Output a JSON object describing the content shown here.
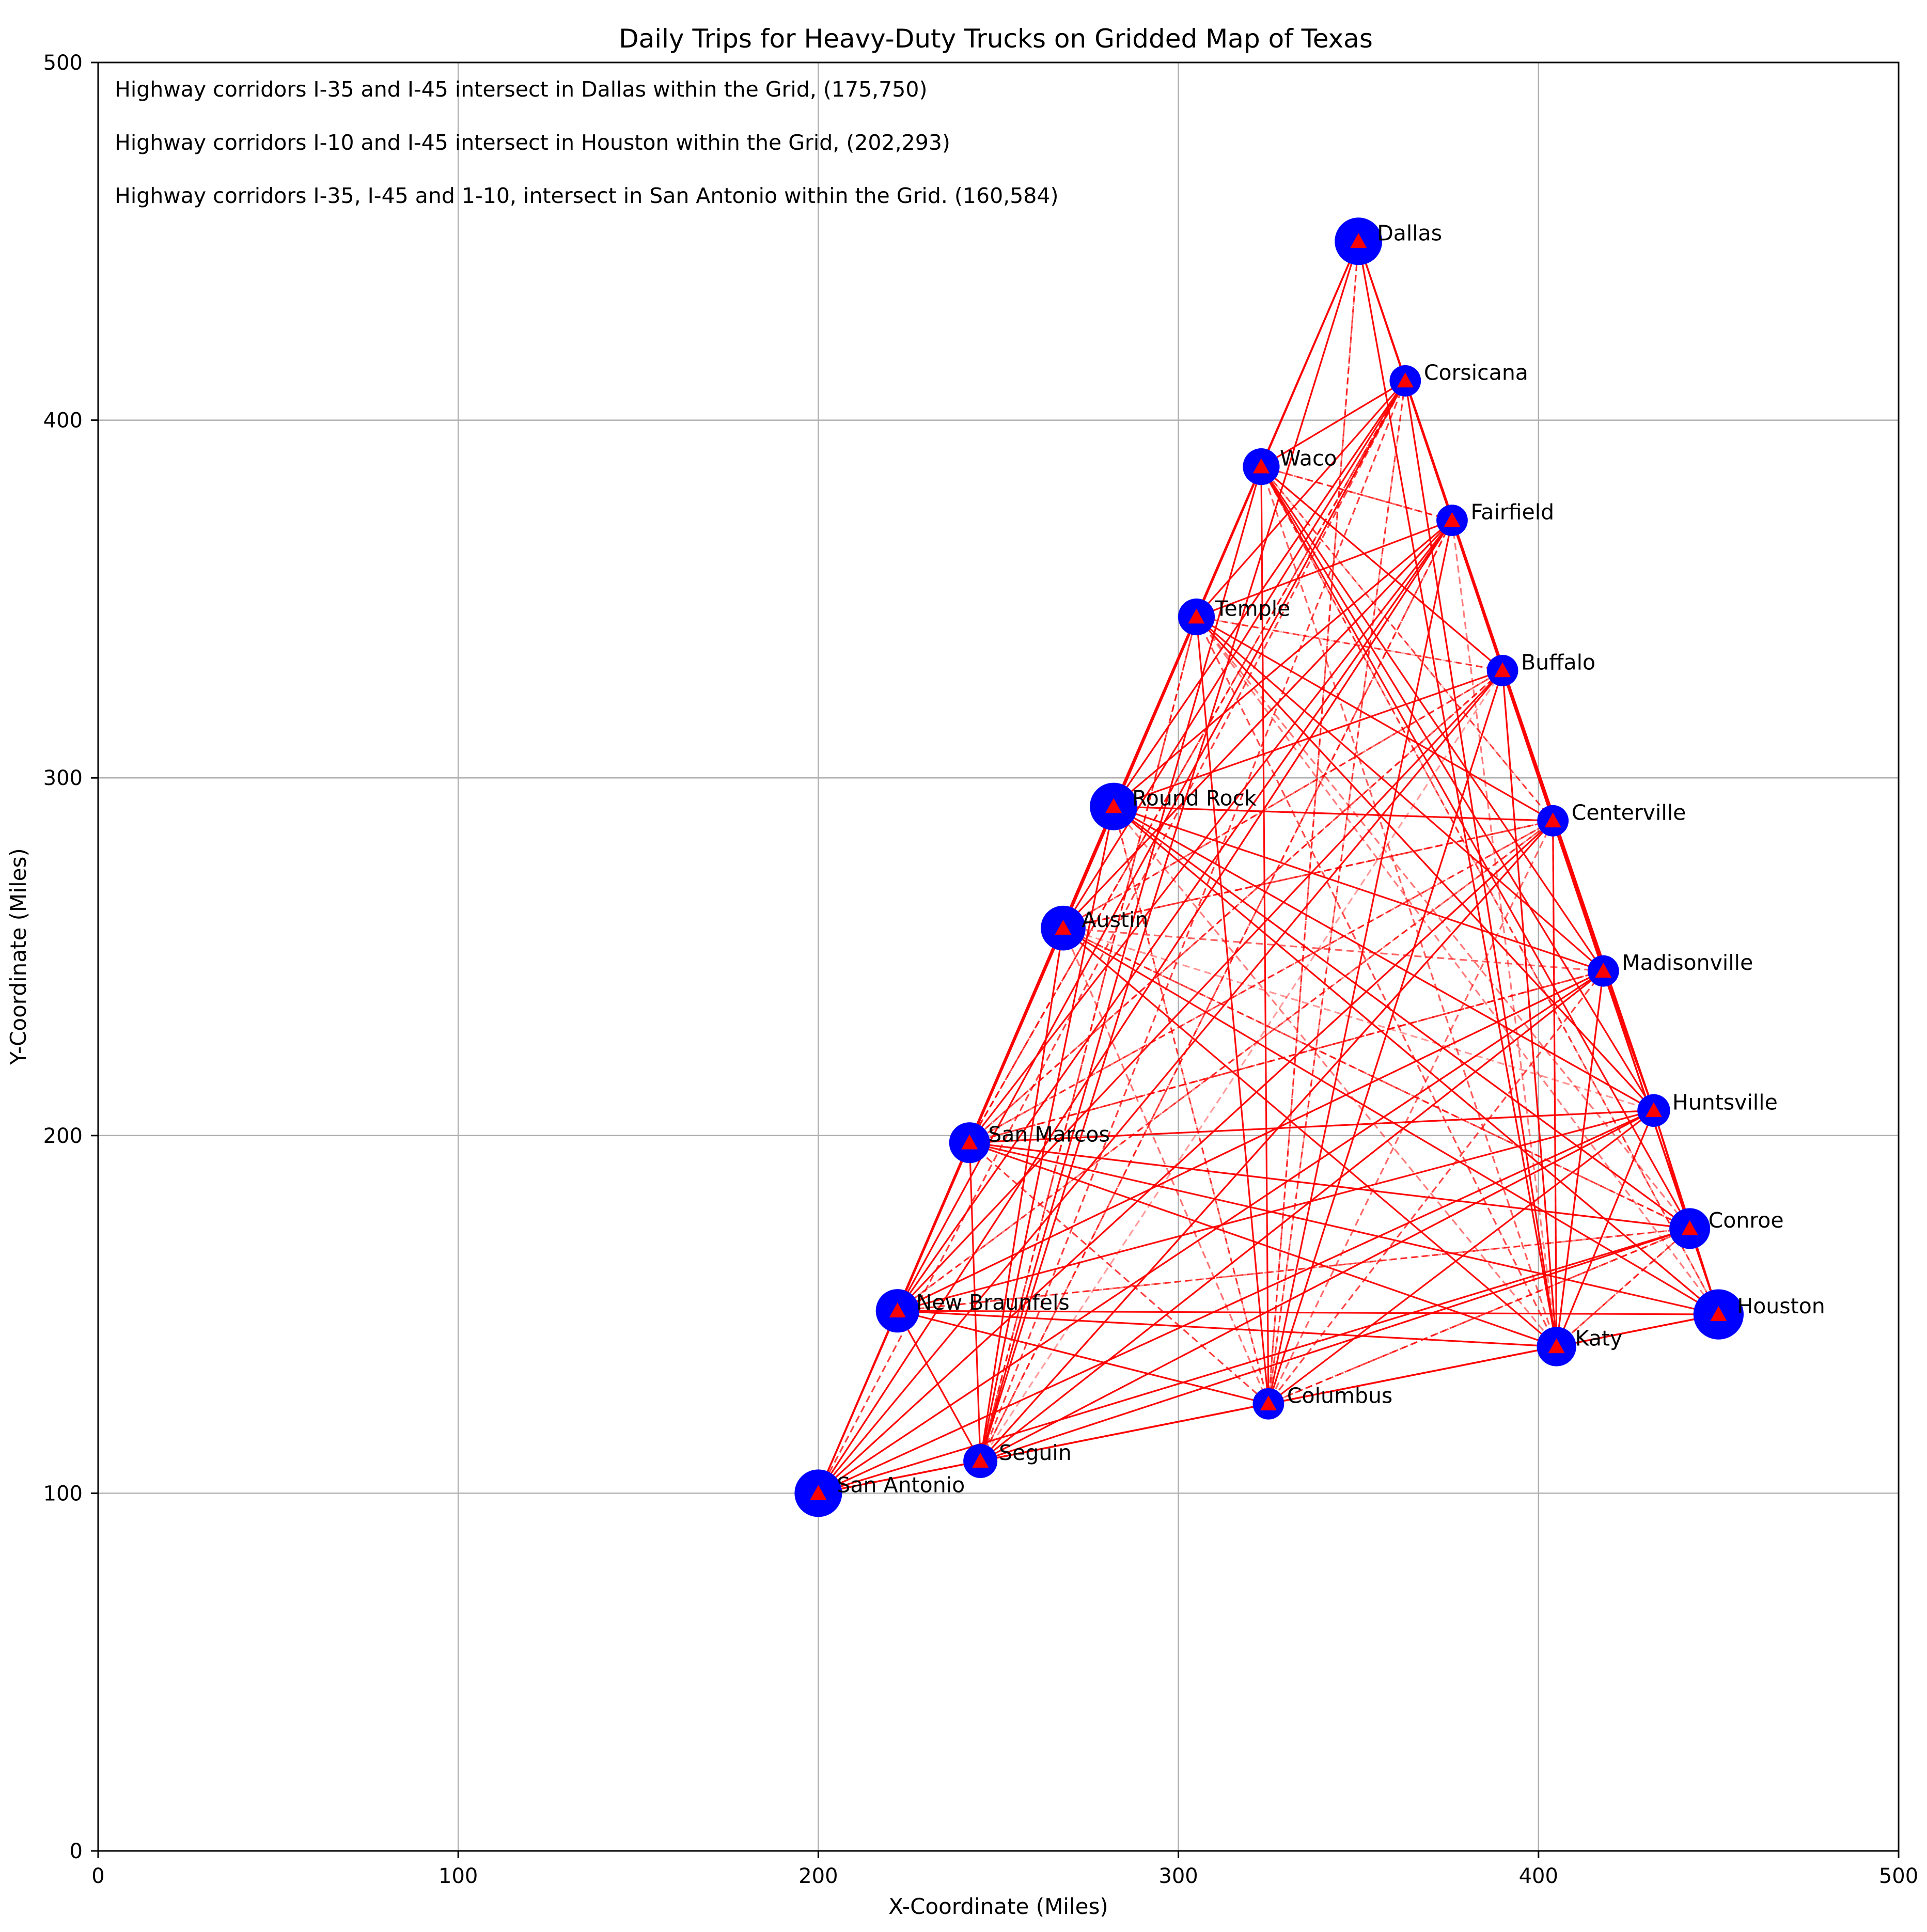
{
  "chart_data": {
    "type": "scatter",
    "title": "Daily Trips for Heavy-Duty Trucks on Gridded Map of Texas",
    "xlabel": "X-Coordinate (Miles)",
    "ylabel": "Y-Coordinate (Miles)",
    "xlim": [
      0,
      500
    ],
    "ylim": [
      0,
      500
    ],
    "xticks": [
      0,
      100,
      200,
      300,
      400,
      500
    ],
    "yticks": [
      0,
      100,
      200,
      300,
      400,
      500
    ],
    "grid": true,
    "annotations": [
      "Highway corridors I-35 and I-45 intersect in Dallas within the Grid, (175,750)",
      "Highway corridors I-10 and I-45 intersect in Houston within the Grid, (202,293)",
      "Highway corridors I-35, I-45 and 1-10, intersect in San Antonio within the Grid. (160,584)"
    ],
    "colors": {
      "city_marker": "#0000ff",
      "trip_line": "#ff0000",
      "grid": "#b0b0b0"
    },
    "cities": [
      {
        "name": "Dallas",
        "x": 350,
        "y": 450,
        "size": 1.0
      },
      {
        "name": "Corsicana",
        "x": 363,
        "y": 411,
        "size": 0.4
      },
      {
        "name": "Waco",
        "x": 323,
        "y": 387,
        "size": 0.6
      },
      {
        "name": "Fairfield",
        "x": 376,
        "y": 372,
        "size": 0.4
      },
      {
        "name": "Temple",
        "x": 305,
        "y": 345,
        "size": 0.6
      },
      {
        "name": "Buffalo",
        "x": 390,
        "y": 330,
        "size": 0.4
      },
      {
        "name": "Round Rock",
        "x": 282,
        "y": 292,
        "size": 1.0
      },
      {
        "name": "Centerville",
        "x": 404,
        "y": 288,
        "size": 0.4
      },
      {
        "name": "Austin",
        "x": 268,
        "y": 258,
        "size": 0.9
      },
      {
        "name": "Madisonville",
        "x": 418,
        "y": 246,
        "size": 0.4
      },
      {
        "name": "Huntsville",
        "x": 432,
        "y": 207,
        "size": 0.45
      },
      {
        "name": "San Marcos",
        "x": 242,
        "y": 198,
        "size": 0.75
      },
      {
        "name": "Conroe",
        "x": 442,
        "y": 174,
        "size": 0.75
      },
      {
        "name": "Houston",
        "x": 450,
        "y": 150,
        "size": 1.1
      },
      {
        "name": "New Braunfels",
        "x": 222,
        "y": 151,
        "size": 0.85
      },
      {
        "name": "Katy",
        "x": 405,
        "y": 141,
        "size": 0.7
      },
      {
        "name": "Columbus",
        "x": 325,
        "y": 125,
        "size": 0.4
      },
      {
        "name": "Seguin",
        "x": 245,
        "y": 109,
        "size": 0.5
      },
      {
        "name": "San Antonio",
        "x": 200,
        "y": 100,
        "size": 1.0
      }
    ]
  }
}
